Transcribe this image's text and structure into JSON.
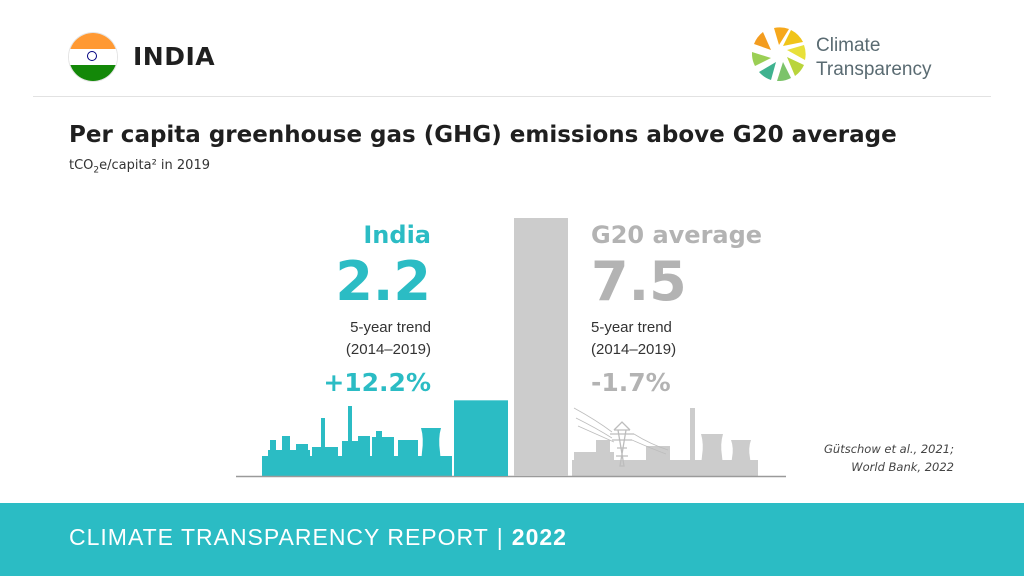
{
  "header": {
    "country": "INDIA",
    "logo_line1": "Climate",
    "logo_line2": "Transparency"
  },
  "title": "Per capita greenhouse gas (GHG) emissions above G20 average",
  "subtitle": {
    "unit_prefix": "tCO",
    "unit_sub": "2",
    "unit_suffix": "e/capita² in 2019"
  },
  "chart_data": {
    "type": "bar",
    "categories": [
      "India",
      "G20 average"
    ],
    "values": [
      2.2,
      7.5
    ],
    "value_labels": [
      "2.2",
      "7.5"
    ],
    "trend_label": "5-year trend",
    "trend_period": "(2014–2019)",
    "trends": [
      "+12.2%",
      "-1.7%"
    ],
    "colors": [
      "#2bbcc4",
      "#cccccc"
    ],
    "label_colors": [
      "#2bbcc4",
      "#b3b3b3"
    ],
    "ylim": [
      0,
      7.5
    ]
  },
  "source": {
    "line1": "Gütschow et al., 2021;",
    "line2": "World Bank, 2022"
  },
  "footer": {
    "text": "CLIMATE TRANSPARENCY REPORT",
    "separator": "|",
    "year": "2022"
  }
}
